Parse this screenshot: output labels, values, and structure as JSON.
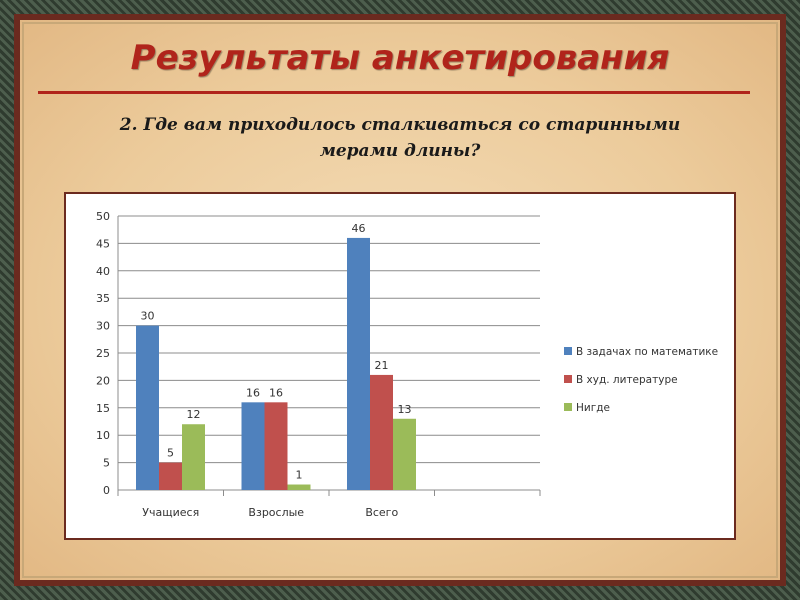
{
  "slide": {
    "title": "Результаты анкетирования",
    "question_line1": "2. Где вам приходилось сталкиваться со старинными",
    "question_line2": "мерами длины?"
  },
  "colors": {
    "title": "#b0241b",
    "series": [
      "#4f81bd",
      "#c0504d",
      "#9bbb59"
    ]
  },
  "chart_data": {
    "type": "bar",
    "categories": [
      "Учащиеся",
      "Взрослые",
      "Всего"
    ],
    "series": [
      {
        "name": "В задачах  по математике",
        "values": [
          30,
          16,
          46
        ]
      },
      {
        "name": "В худ. литературе",
        "values": [
          5,
          16,
          21
        ]
      },
      {
        "name": "Нигде",
        "values": [
          12,
          1,
          13
        ]
      }
    ],
    "yticks": [
      "0",
      "5",
      "10",
      "15",
      "20",
      "25",
      "30",
      "35",
      "40",
      "45",
      "50"
    ],
    "ylim": [
      0,
      50
    ],
    "title": "",
    "xlabel": "",
    "ylabel": "",
    "grid": true,
    "legend_position": "right"
  }
}
